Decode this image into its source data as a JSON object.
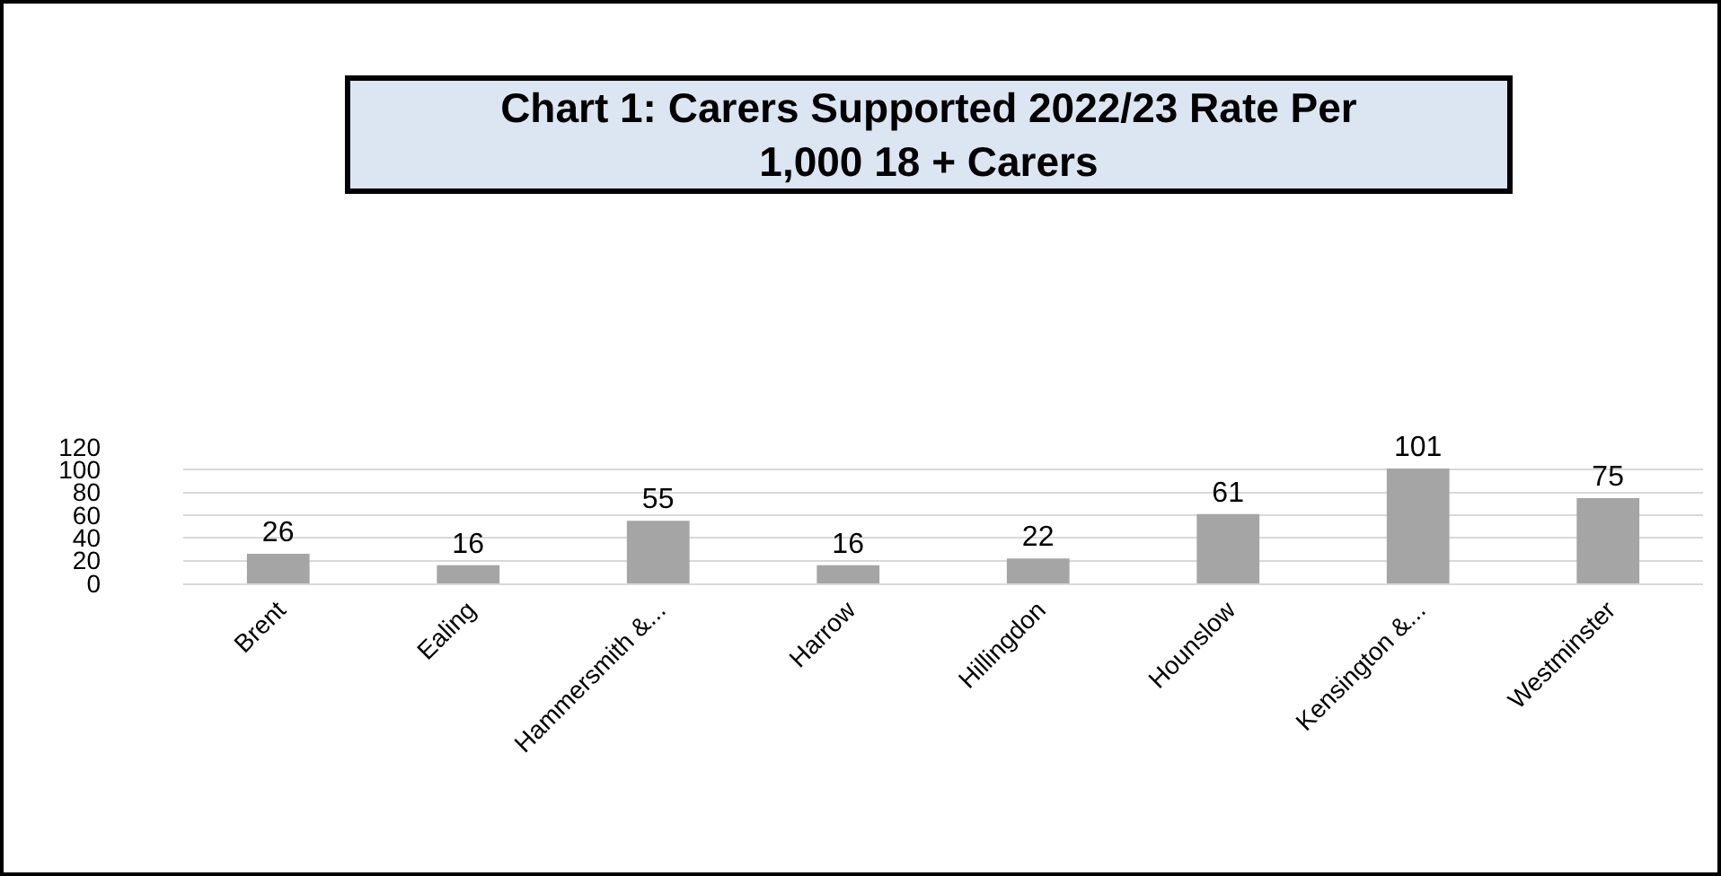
{
  "chart_data": {
    "type": "bar",
    "title": "Chart 1: Carers Supported 2022/23 Rate Per\n1,000 18 + Carers",
    "categories": [
      "Brent",
      "Ealing",
      "Hammersmith &...",
      "Harrow",
      "Hillingdon",
      "Hounslow",
      "Kensington &...",
      "Westminster"
    ],
    "values": [
      26,
      16,
      55,
      16,
      22,
      61,
      101,
      75
    ],
    "color": "#a5a5a5",
    "ylim": [
      0,
      120
    ],
    "yticks": [
      0,
      20,
      40,
      60,
      80,
      100,
      120
    ],
    "grid": "y",
    "data_labels": true,
    "legend": false
  }
}
